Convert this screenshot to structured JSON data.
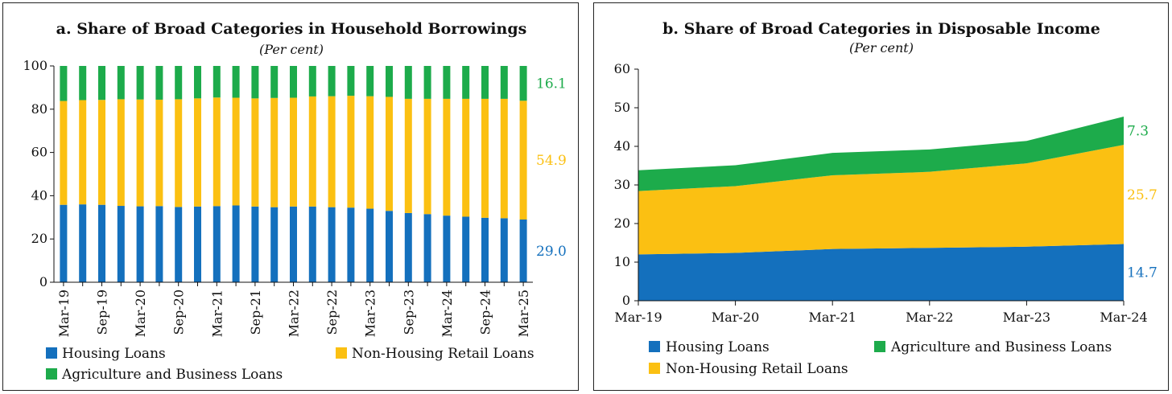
{
  "colors": {
    "housing": "#1470bd",
    "non_housing": "#fbc012",
    "agri": "#1dab4b",
    "text": "#111111"
  },
  "chart_data": [
    {
      "type": "bar",
      "stacked": true,
      "title": "a. Share of Broad Categories in Household Borrowings",
      "subtitle": "(Per cent)",
      "ylim": [
        0,
        100
      ],
      "yticks": [
        0,
        20,
        40,
        60,
        80,
        100
      ],
      "categories": [
        "Mar-19",
        "Jun-19",
        "Sep-19",
        "Dec-19",
        "Mar-20",
        "Jun-20",
        "Sep-20",
        "Dec-20",
        "Mar-21",
        "Jun-21",
        "Sep-21",
        "Dec-21",
        "Mar-22",
        "Jun-22",
        "Sep-22",
        "Dec-22",
        "Mar-23",
        "Jun-23",
        "Sep-23",
        "Dec-23",
        "Mar-24",
        "Jun-24",
        "Sep-24",
        "Dec-24",
        "Mar-25"
      ],
      "tick_labels": [
        "Mar-19",
        "Sep-19",
        "Mar-20",
        "Sep-20",
        "Mar-21",
        "Sep-21",
        "Mar-22",
        "Sep-22",
        "Mar-23",
        "Sep-23",
        "Mar-24",
        "Sep-24",
        "Mar-25"
      ],
      "series": [
        {
          "name": "Housing Loans",
          "color_key": "housing",
          "values": [
            35.8,
            36.0,
            35.8,
            35.3,
            35.1,
            35.2,
            34.8,
            35.0,
            35.2,
            35.5,
            35.0,
            34.7,
            35.0,
            35.0,
            34.7,
            34.5,
            34.0,
            33.0,
            32.0,
            31.5,
            30.8,
            30.3,
            29.8,
            29.6,
            29.0
          ]
        },
        {
          "name": "Non-Housing Retail Loans",
          "color_key": "non_housing",
          "values": [
            48.0,
            48.2,
            48.5,
            49.3,
            49.4,
            49.2,
            49.8,
            50.0,
            50.2,
            49.8,
            50.0,
            50.5,
            50.3,
            50.9,
            51.3,
            51.7,
            52.0,
            52.7,
            52.8,
            53.3,
            54.0,
            54.5,
            55.0,
            55.2,
            54.9
          ]
        },
        {
          "name": "Agriculture and Business Loans",
          "color_key": "agri",
          "values": [
            16.2,
            15.8,
            15.7,
            15.4,
            15.5,
            15.6,
            15.4,
            15.0,
            14.6,
            14.7,
            15.0,
            14.8,
            14.7,
            14.1,
            14.0,
            13.8,
            14.0,
            14.3,
            15.2,
            15.2,
            15.2,
            15.2,
            15.2,
            15.2,
            16.1
          ]
        }
      ],
      "end_labels": [
        "29.0",
        "54.9",
        "16.1"
      ],
      "legend": [
        "Housing Loans",
        "Non-Housing Retail Loans",
        "Agriculture and Business Loans"
      ]
    },
    {
      "type": "area",
      "stacked": true,
      "title": "b. Share of Broad Categories in Disposable Income",
      "subtitle": "(Per cent)",
      "ylim": [
        0,
        60
      ],
      "yticks": [
        0,
        10,
        20,
        30,
        40,
        50,
        60
      ],
      "categories": [
        "Mar-19",
        "Mar-20",
        "Mar-21",
        "Mar-22",
        "Mar-23",
        "Mar-24"
      ],
      "series": [
        {
          "name": "Housing Loans",
          "color_key": "housing",
          "values": [
            12.0,
            12.4,
            13.4,
            13.7,
            14.0,
            14.7
          ]
        },
        {
          "name": "Non-Housing Retail Loans",
          "color_key": "non_housing",
          "values": [
            16.4,
            17.3,
            19.1,
            19.7,
            21.6,
            25.7
          ]
        },
        {
          "name": "Agriculture and Business Loans",
          "color_key": "agri",
          "values": [
            5.4,
            5.4,
            5.8,
            5.8,
            5.8,
            7.3
          ]
        }
      ],
      "end_labels": [
        "14.7",
        "25.7",
        "7.3"
      ],
      "legend": [
        "Housing Loans",
        "Agriculture and Business Loans",
        "Non-Housing Retail Loans"
      ]
    }
  ]
}
